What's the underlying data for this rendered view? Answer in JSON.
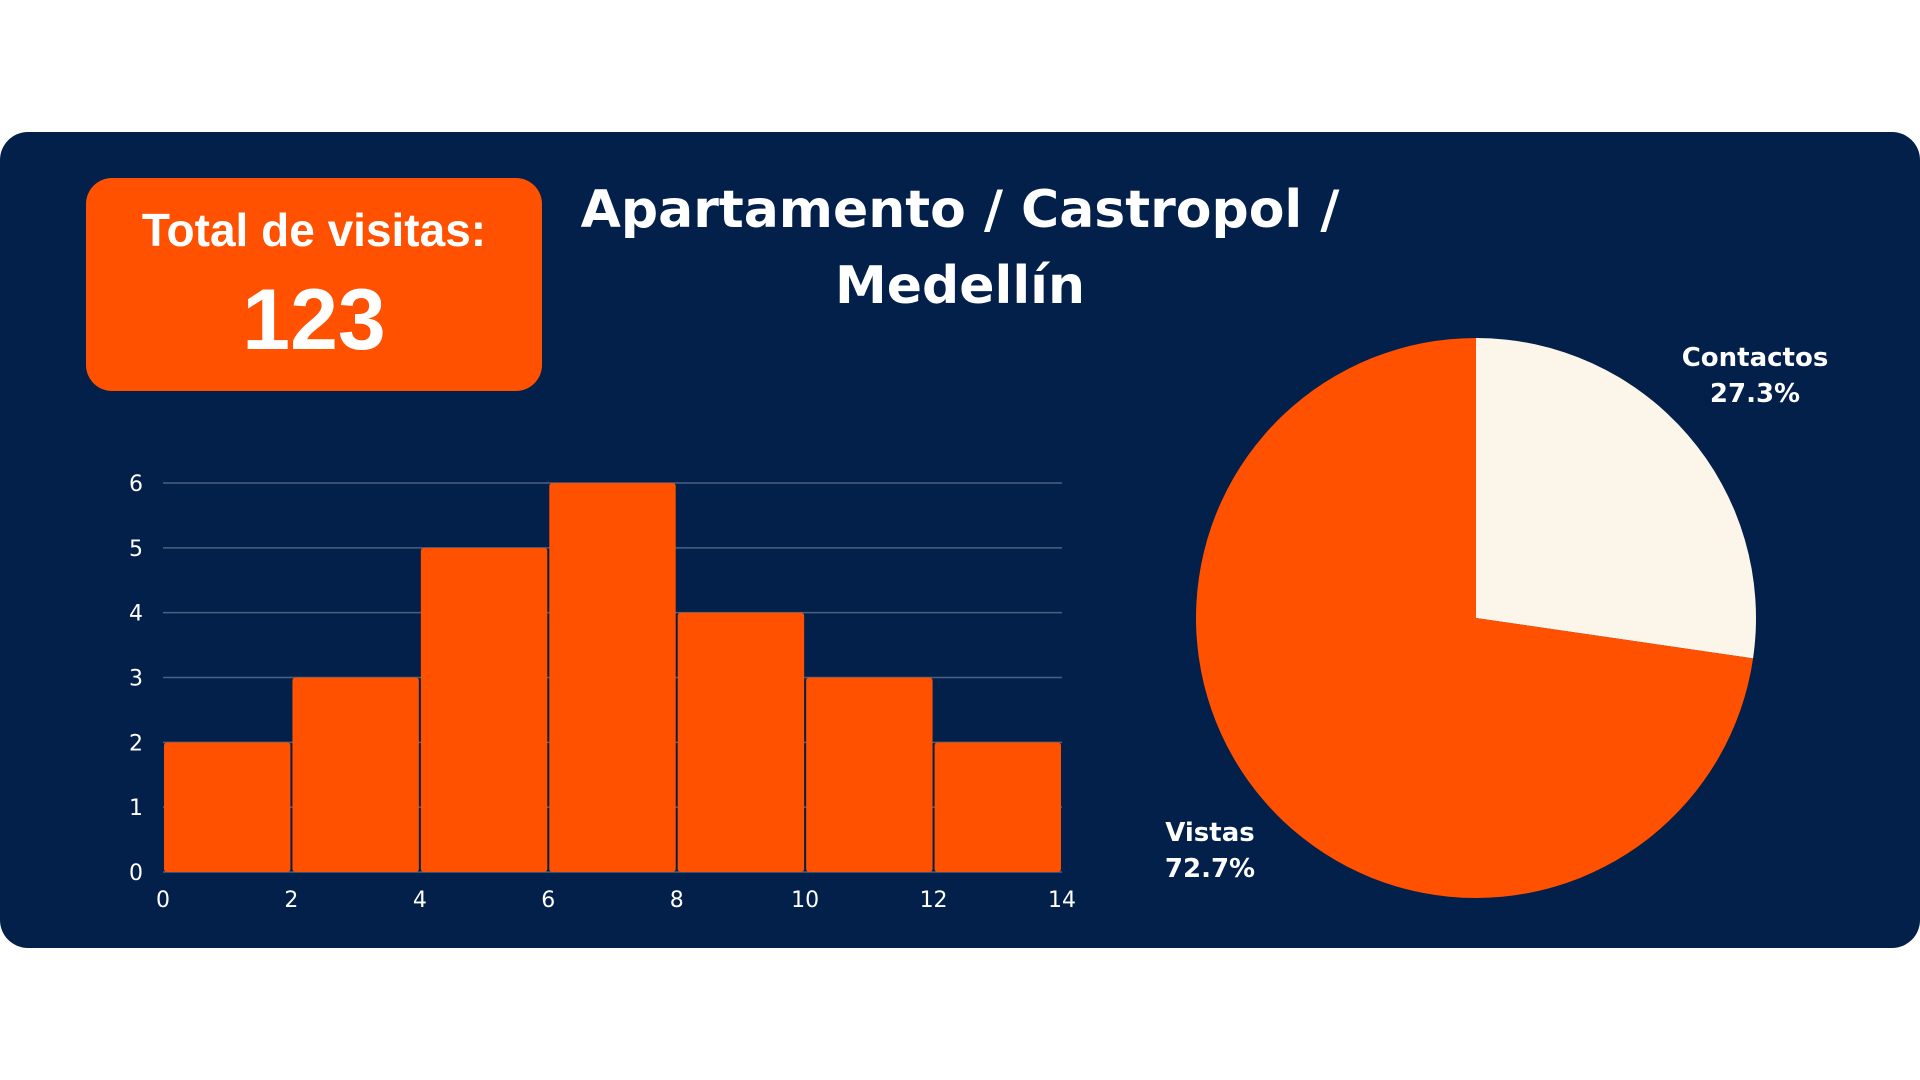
{
  "summary": {
    "total_label": "Total de visitas:",
    "total_value": "123"
  },
  "title": {
    "line1": "Apartamento / Castropol /",
    "line2": "Medellín"
  },
  "colors": {
    "background": "#022049",
    "accent": "#ff5100",
    "light": "#fbf5ea",
    "grid": "#4a6182"
  },
  "chart_data": [
    {
      "type": "bar",
      "subtype": "histogram",
      "bin_edges": [
        0,
        2,
        4,
        6,
        8,
        10,
        12,
        14
      ],
      "values": [
        2,
        3,
        5,
        6,
        4,
        3,
        2
      ],
      "xlim": [
        0,
        14
      ],
      "ylim": [
        0,
        6
      ],
      "x_ticks": [
        "0",
        "2",
        "4",
        "6",
        "8",
        "10",
        "12",
        "14"
      ],
      "y_ticks": [
        "0",
        "1",
        "2",
        "3",
        "4",
        "5",
        "6"
      ],
      "grid": "horizontal",
      "color": "#ff5100"
    },
    {
      "type": "pie",
      "slices": [
        {
          "label": "Contactos",
          "percent_label": "27.3%",
          "value": 27.3,
          "color": "#fbf5ea"
        },
        {
          "label": "Vistas",
          "percent_label": "72.7%",
          "value": 72.7,
          "color": "#ff5100"
        }
      ]
    }
  ]
}
